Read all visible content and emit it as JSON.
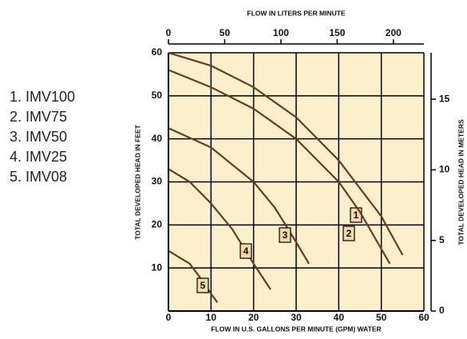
{
  "chart_data": {
    "type": "line",
    "x_label": "FLOW IN U.S. GALLONS PER MINUTE (GPM) WATER",
    "x2_label": "FLOW IN LITERS PER MINUTE",
    "y_label": "TOTAL DEVELOPED HEAD IN FEET",
    "y2_label": "TOTAL DEVELOPED HEAD IN METERS",
    "legend": [
      "1. IMV100",
      "2. IMV75",
      "3. IMV50",
      "4. IMV25",
      "5. IMV08"
    ],
    "xlim": [
      0,
      60
    ],
    "xticks": [
      0,
      10,
      20,
      30,
      40,
      50,
      60
    ],
    "x2lim": [
      0,
      227.1
    ],
    "x2ticks": [
      0,
      50,
      100,
      150,
      200
    ],
    "ylim": [
      0,
      60
    ],
    "yticks": [
      10,
      20,
      30,
      40,
      50,
      60
    ],
    "y2lim": [
      0,
      18.29
    ],
    "y2ticks": [
      0,
      5,
      10,
      15
    ],
    "grid": true,
    "background": "#fcf0cc",
    "series": [
      {
        "name": "1",
        "color": "#6b3a1a",
        "x": [
          0,
          10,
          20,
          30,
          40,
          50,
          55
        ],
        "values": [
          60,
          57,
          52,
          45,
          35,
          22,
          13
        ]
      },
      {
        "name": "2",
        "color": "#6b3a1a",
        "x": [
          0,
          10,
          20,
          30,
          40,
          45,
          52
        ],
        "values": [
          56,
          52,
          47,
          40,
          30,
          23,
          11
        ]
      },
      {
        "name": "3",
        "color": "#6b3a1a",
        "x": [
          0,
          10,
          20,
          25,
          30,
          33
        ],
        "values": [
          42.5,
          38,
          30,
          24,
          16,
          11
        ]
      },
      {
        "name": "4",
        "color": "#6b3a1a",
        "x": [
          0,
          5,
          10,
          15,
          20,
          24
        ],
        "values": [
          33,
          30,
          25,
          19,
          11,
          5
        ]
      },
      {
        "name": "5",
        "color": "#6b3a1a",
        "x": [
          0,
          5,
          8,
          10,
          11.5
        ],
        "values": [
          14,
          11,
          7,
          4,
          2
        ]
      }
    ]
  }
}
